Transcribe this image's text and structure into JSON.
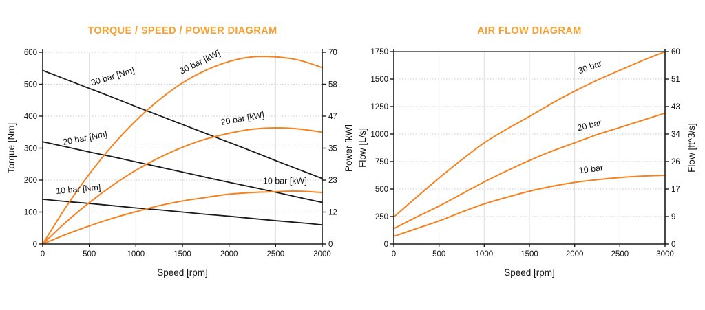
{
  "colors": {
    "title_orange": "#F9A02E",
    "curve_orange": "#F5821F",
    "curve_black": "#1A1A1A",
    "axis_color": "#1A1A1A",
    "grid_vertical": "#DDDDDD",
    "grid_horizontal": "#C9C9C9"
  },
  "chart_data": [
    {
      "type": "line",
      "title": "TORQUE / SPEED / POWER DIAGRAM",
      "xlabel": "Speed [rpm]",
      "ylabel_left": "Torque [Nm]",
      "ylabel_right": "Power [kW]",
      "xlim": [
        0,
        3000
      ],
      "ylim_left": [
        0,
        600
      ],
      "ylim_right": [
        0,
        70
      ],
      "x_ticks": [
        0,
        500,
        1000,
        1500,
        2000,
        2500,
        3000
      ],
      "y_ticks_left": [
        0,
        100,
        200,
        300,
        400,
        500,
        600
      ],
      "y_ticks_right": [
        0,
        12,
        23,
        35,
        47,
        58,
        70
      ],
      "grid": true,
      "top_border": false,
      "legend_position": "inline-curve-labels",
      "x": [
        0,
        250,
        500,
        750,
        1000,
        1250,
        1500,
        1750,
        2000,
        2250,
        2500,
        2750,
        3000
      ],
      "series": [
        {
          "name": "30 bar [Nm]",
          "axis": "left",
          "color_key": "curve_black",
          "values": [
            543,
            515,
            487,
            459,
            430,
            402,
            374,
            346,
            318,
            290,
            261,
            233,
            205
          ]
        },
        {
          "name": "20 bar [Nm]",
          "axis": "left",
          "color_key": "curve_black",
          "values": [
            320,
            304,
            288,
            273,
            257,
            241,
            225,
            209,
            193,
            178,
            162,
            146,
            130
          ]
        },
        {
          "name": "10 bar [Nm]",
          "axis": "left",
          "color_key": "curve_black",
          "values": [
            140,
            133,
            127,
            120,
            113,
            107,
            100,
            93,
            87,
            80,
            73,
            67,
            60
          ]
        },
        {
          "name": "30 bar [kW]",
          "axis": "right",
          "color_key": "curve_orange",
          "values": [
            0,
            13.5,
            25.5,
            36.0,
            45.0,
            52.6,
            58.8,
            63.4,
            66.6,
            68.3,
            68.3,
            67.1,
            64.4
          ]
        },
        {
          "name": "20 bar [kW]",
          "axis": "right",
          "color_key": "curve_orange",
          "values": [
            0,
            8.0,
            15.1,
            21.4,
            26.9,
            31.5,
            35.3,
            38.3,
            40.4,
            41.9,
            42.4,
            42.0,
            40.8
          ]
        },
        {
          "name": "10 bar [kW]",
          "axis": "right",
          "color_key": "curve_orange",
          "values": [
            0,
            3.5,
            6.6,
            9.4,
            11.8,
            14.0,
            15.7,
            17.0,
            18.2,
            18.8,
            19.1,
            19.3,
            18.8
          ]
        }
      ],
      "curve_labels": [
        {
          "text": "30 bar [Nm]",
          "x": 760,
          "y": 516,
          "axis": "left",
          "rotate": -17
        },
        {
          "text": "20 bar [Nm]",
          "x": 460,
          "y": 323,
          "axis": "left",
          "rotate": -11
        },
        {
          "text": "10 bar [Nm]",
          "x": 385,
          "y": 163,
          "axis": "left",
          "rotate": -5
        },
        {
          "text": "30 bar [kW]",
          "x": 1700,
          "y": 65.5,
          "axis": "right",
          "rotate": -26
        },
        {
          "text": "20 bar [kW]",
          "x": 2150,
          "y": 44.8,
          "axis": "right",
          "rotate": -10
        },
        {
          "text": "10 bar [kW]",
          "x": 2600,
          "y": 22.0,
          "axis": "right",
          "rotate": 0
        }
      ]
    },
    {
      "type": "line",
      "title": "AIR FLOW DIAGRAM",
      "xlabel": "Speed [rpm]",
      "ylabel_left": "Flow [L/s]",
      "ylabel_right": "Flow [ft^3/s]",
      "xlim": [
        0,
        3000
      ],
      "ylim_left": [
        0,
        1750
      ],
      "ylim_right": [
        0,
        60
      ],
      "x_ticks": [
        0,
        500,
        1000,
        1500,
        2000,
        2500,
        3000
      ],
      "y_ticks_left": [
        0,
        250,
        500,
        750,
        1000,
        1250,
        1500,
        1750
      ],
      "y_ticks_right": [
        0,
        9,
        17,
        26,
        34,
        43,
        51,
        60
      ],
      "grid": true,
      "top_border": true,
      "legend_position": "inline-curve-labels",
      "x": [
        0,
        250,
        500,
        750,
        1000,
        1250,
        1500,
        1750,
        2000,
        2250,
        2500,
        2750,
        3000
      ],
      "series": [
        {
          "name": "30 bar",
          "axis": "left",
          "color_key": "curve_orange",
          "values": [
            245,
            425,
            600,
            765,
            920,
            1045,
            1160,
            1280,
            1390,
            1490,
            1580,
            1668,
            1750
          ]
        },
        {
          "name": "20 bar",
          "axis": "left",
          "color_key": "curve_orange",
          "values": [
            140,
            245,
            345,
            455,
            565,
            665,
            760,
            845,
            920,
            995,
            1060,
            1125,
            1190
          ]
        },
        {
          "name": "10 bar",
          "axis": "left",
          "color_key": "curve_orange",
          "values": [
            70,
            140,
            210,
            290,
            365,
            425,
            480,
            525,
            560,
            585,
            605,
            618,
            625
          ]
        }
      ],
      "curve_labels": [
        {
          "text": "30 bar",
          "x": 2180,
          "y": 1585,
          "axis": "left",
          "rotate": -20
        },
        {
          "text": "20 bar",
          "x": 2170,
          "y": 1055,
          "axis": "left",
          "rotate": -14
        },
        {
          "text": "10 bar",
          "x": 2185,
          "y": 655,
          "axis": "left",
          "rotate": -7
        }
      ]
    }
  ]
}
